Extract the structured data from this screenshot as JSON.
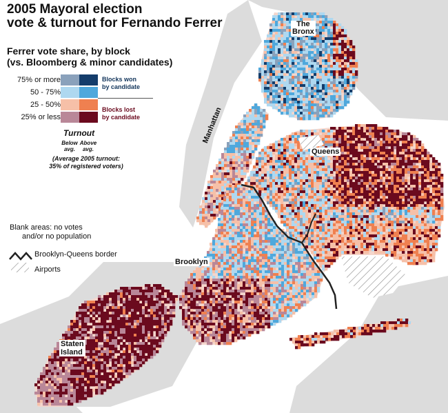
{
  "title": {
    "line1": "2005 Mayoral election",
    "line2": "vote & turnout for Fernando Ferrer"
  },
  "subtitle": {
    "line1": "Ferrer vote share, by block",
    "line2": "(vs. Bloomberg & minor candidates)"
  },
  "legend": {
    "rows": [
      {
        "label": "75% or more",
        "below": "#8aa1bb",
        "above": "#143d6b"
      },
      {
        "label": "50 - 75%",
        "below": "#aed8f0",
        "above": "#4fa8dc"
      },
      {
        "label": "25 - 50%",
        "below": "#f6c0a8",
        "above": "#ef8050"
      },
      {
        "label": "25% or less",
        "below": "#b98798",
        "above": "#6b0a1e"
      }
    ],
    "won": {
      "line1": "Blocks won",
      "line2": "by candidate"
    },
    "lost": {
      "line1": "Blocks lost",
      "line2": "by candidate"
    },
    "turnout": {
      "title": "Turnout",
      "below_line1": "Below",
      "below_line2": "avg.",
      "above_line1": "Above",
      "above_line2": "avg.",
      "note_line1": "(Average 2005 turnout:",
      "note_line2": "35% of registered voters)"
    },
    "blank_line1": "Blank areas: no votes",
    "blank_line2": "and/or no population",
    "border": "Brooklyn-Queens border",
    "airports": "Airports"
  },
  "places": {
    "bronx_line1": "The",
    "bronx_line2": "Bronx",
    "manhattan": "Manhattan",
    "queens": "Queens",
    "brooklyn": "Brooklyn",
    "staten_line1": "Staten",
    "staten_line2": "Island"
  },
  "colors": {
    "land": "#dcdcdc",
    "water": "#ffffff"
  }
}
